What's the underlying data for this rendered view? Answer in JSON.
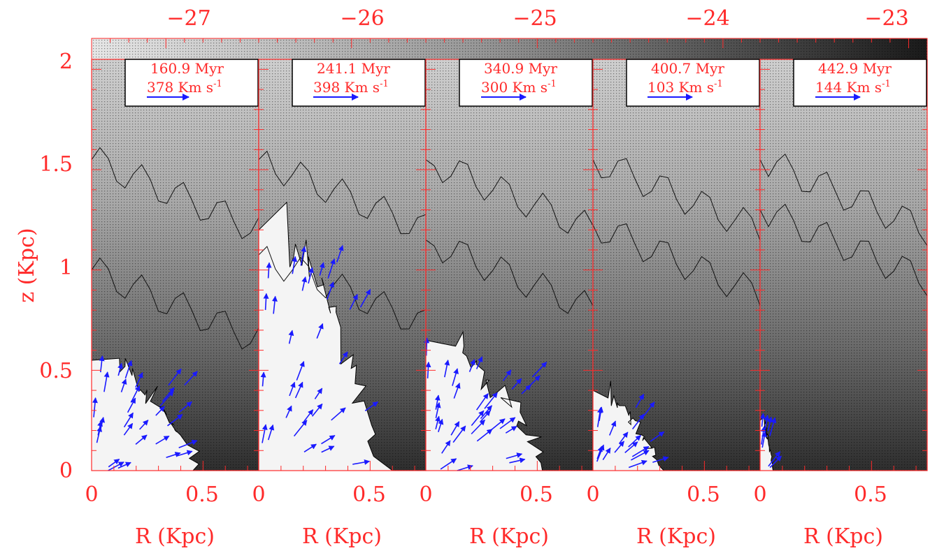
{
  "colors": {
    "axis": "#ff2a2a",
    "arrow": "#1a1aff",
    "contour": "#111111",
    "cavity": "#f4f4f4"
  },
  "colorbar": {
    "tick_labels": [
      "−27",
      "−26",
      "−25",
      "−24",
      "−23"
    ],
    "range": [
      -27.4,
      -22.9
    ],
    "cmap": "gray-dotted (light → dark)"
  },
  "chart_data": [
    {
      "type": "vector-field",
      "panel": 1,
      "time_label": "160.9 Myr",
      "velocity_label": "378 Km s",
      "velocity_exp": "-1",
      "xlabel": "R (Kpc)",
      "xticks": [
        "0",
        "0.5"
      ],
      "ylabel": "z (Kpc)",
      "yticks": [
        "0",
        "0.5",
        "1",
        "1.5",
        "2"
      ],
      "xlim": [
        0,
        0.75
      ],
      "ylim": [
        0,
        2.05
      ],
      "bubble_radius": 0.5,
      "bubble_height": 0.55
    },
    {
      "type": "vector-field",
      "panel": 2,
      "time_label": "241.1 Myr",
      "velocity_label": "398 Km s",
      "velocity_exp": "-1",
      "xlabel": "R (Kpc)",
      "xticks": [
        "0",
        "0.5"
      ],
      "xlim": [
        0,
        0.75
      ],
      "ylim": [
        0,
        2.05
      ],
      "bubble_radius": 0.55,
      "bubble_height": 1.2
    },
    {
      "type": "vector-field",
      "panel": 3,
      "time_label": "340.9 Myr",
      "velocity_label": "300 Km s",
      "velocity_exp": "-1",
      "xlabel": "R (Kpc)",
      "xticks": [
        "0",
        "0.5"
      ],
      "xlim": [
        0,
        0.75
      ],
      "ylim": [
        0,
        2.05
      ],
      "bubble_radius": 0.55,
      "bubble_height": 0.65
    },
    {
      "type": "vector-field",
      "panel": 4,
      "time_label": "400.7 Myr",
      "velocity_label": "103 Km s",
      "velocity_exp": "-1",
      "xlabel": "R (Kpc)",
      "xticks": [
        "0",
        "0.5"
      ],
      "xlim": [
        0,
        0.75
      ],
      "ylim": [
        0,
        2.05
      ],
      "bubble_radius": 0.3,
      "bubble_height": 0.4
    },
    {
      "type": "vector-field",
      "panel": 5,
      "time_label": "442.9 Myr",
      "velocity_label": "144 Km s",
      "velocity_exp": "-1",
      "xlabel": "R (Kpc)",
      "xticks": [
        "0",
        "0.5"
      ],
      "xlim": [
        0,
        0.75
      ],
      "ylim": [
        0,
        2.05
      ],
      "bubble_radius": 0.06,
      "bubble_height": 0.25
    }
  ]
}
